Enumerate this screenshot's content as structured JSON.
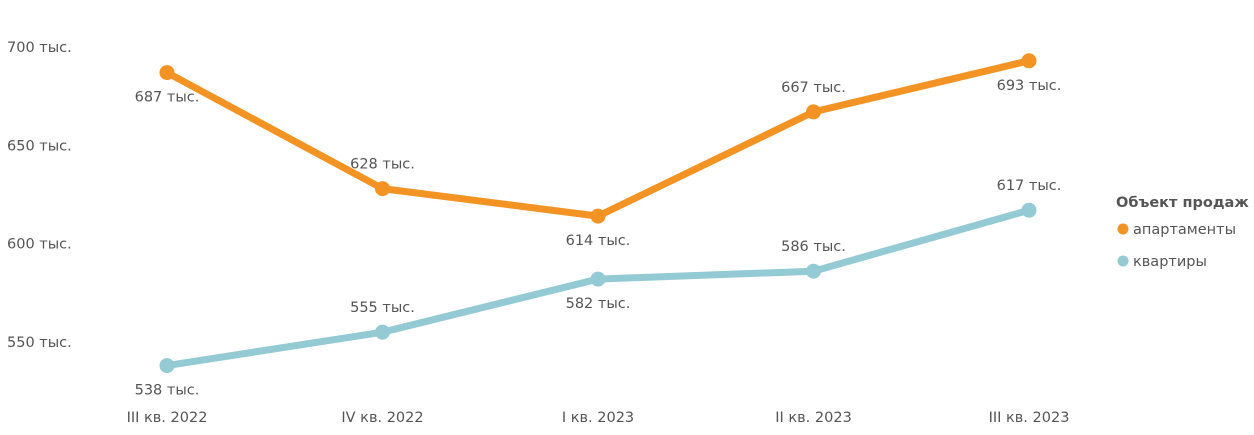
{
  "chart_data": {
    "type": "line",
    "categories": [
      "III кв. 2022",
      "IV кв. 2022",
      "I кв. 2023",
      "II кв. 2023",
      "III кв. 2023"
    ],
    "series": [
      {
        "name": "апартаменты",
        "color": "#f39324",
        "values": [
          687,
          628,
          614,
          667,
          693
        ],
        "labels": [
          "687 тыс.",
          "628 тыс.",
          "614 тыс.",
          "667 тыс.",
          "693 тыс."
        ]
      },
      {
        "name": "квартиры",
        "color": "#93cad3",
        "values": [
          538,
          555,
          582,
          586,
          617
        ],
        "labels": [
          "538 тыс.",
          "555 тыс.",
          "582 тыс.",
          "586 тыс.",
          "617 тыс."
        ]
      }
    ],
    "ylim": [
      550,
      700
    ],
    "yticks": [
      {
        "value": 700,
        "label": "700 тыс."
      },
      {
        "value": 650,
        "label": "650 тыс."
      },
      {
        "value": 600,
        "label": "600 тыс."
      },
      {
        "value": 550,
        "label": "550 тыс."
      }
    ],
    "grid": false,
    "legend": {
      "title": "Объект продаж",
      "position": "right"
    }
  }
}
